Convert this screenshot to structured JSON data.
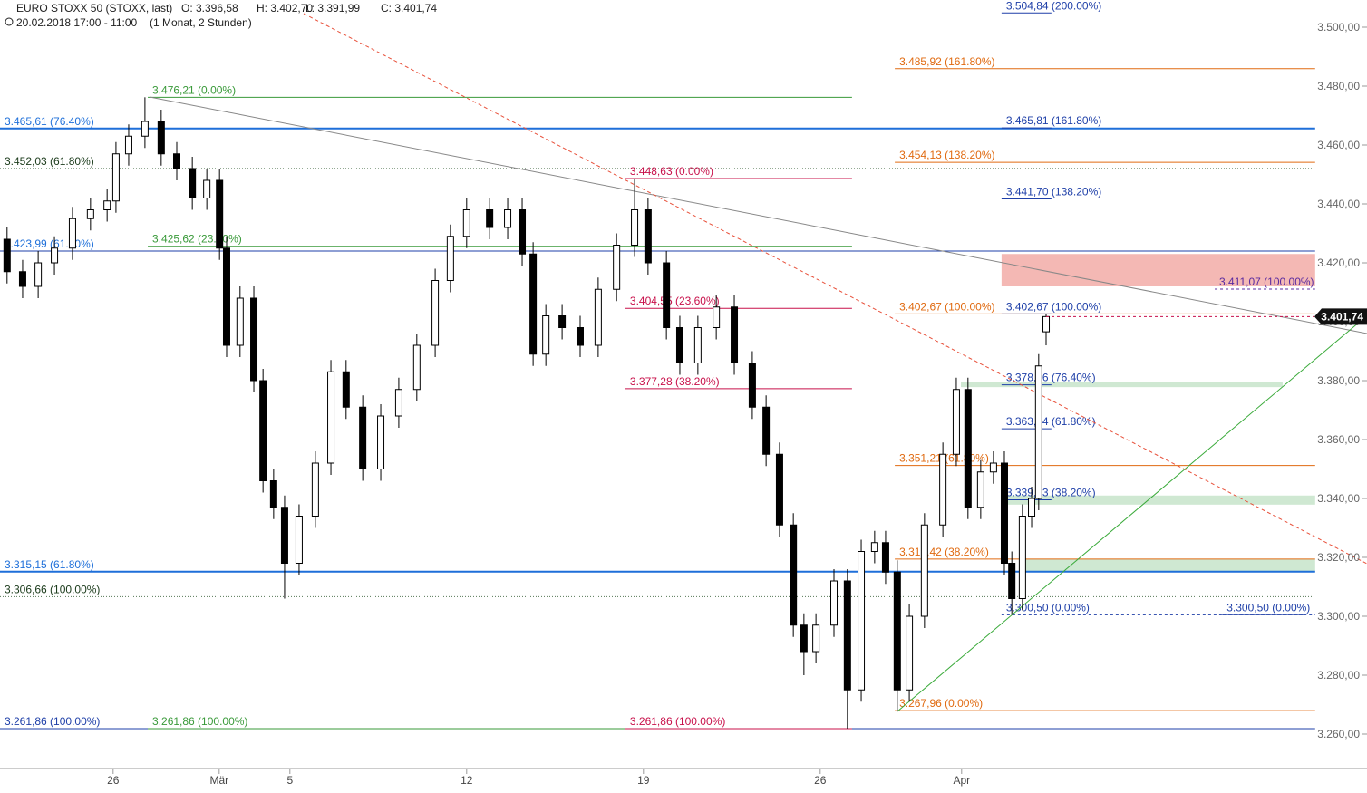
{
  "chart_data": {
    "type": "candlestick",
    "title": "EURO STOXX 50 (STOXX, last)",
    "ohlc_labels": [
      "O: 3.396,58",
      "H: 3.402,70",
      "L: 3.391,99",
      "C: 3.401,74"
    ],
    "subtitle": "20.02.2018 17:00 - 11:00",
    "period": "(1 Monat, 2 Stunden)",
    "xlim": [
      -3.2,
      34
    ],
    "ylim": [
      3248.31,
      3509.23
    ],
    "xticks": [
      {
        "value": 0,
        "label": "26"
      },
      {
        "value": 3,
        "label": "Mär"
      },
      {
        "value": 5,
        "label": "5"
      },
      {
        "value": 10,
        "label": "12"
      },
      {
        "value": 15,
        "label": "19"
      },
      {
        "value": 20,
        "label": "26"
      },
      {
        "value": 24,
        "label": "Apr"
      }
    ],
    "yticks": [
      {
        "value": 3500,
        "label": "3.500,00"
      },
      {
        "value": 3480,
        "label": "3.480,00"
      },
      {
        "value": 3460,
        "label": "3.460,00"
      },
      {
        "value": 3440,
        "label": "3.440,00"
      },
      {
        "value": 3420,
        "label": "3.420,00"
      },
      {
        "value": 3400,
        "label": "3.400,00"
      },
      {
        "value": 3380,
        "label": "3.380,00"
      },
      {
        "value": 3360,
        "label": "3.360,00"
      },
      {
        "value": 3340,
        "label": "3.340,00"
      },
      {
        "value": 3320,
        "label": "3.320,00"
      },
      {
        "value": 3300,
        "label": "3.300,00"
      },
      {
        "value": 3280,
        "label": "3.280,00"
      },
      {
        "value": 3260,
        "label": "3.260,00"
      }
    ],
    "up_color": "#ffffff",
    "down_color": "#000000",
    "x": [
      -3.0,
      -2.56,
      -2.12,
      -1.66,
      -1.15,
      -0.64,
      -0.17,
      0.08,
      0.44,
      0.9,
      1.36,
      1.8,
      2.24,
      2.65,
      3.01,
      3.21,
      3.59,
      3.98,
      4.24,
      4.54,
      4.85,
      5.26,
      5.72,
      6.16,
      6.59,
      7.06,
      7.57,
      8.08,
      8.59,
      9.11,
      9.54,
      10.0,
      10.65,
      11.16,
      11.57,
      11.88,
      12.24,
      12.7,
      13.21,
      13.72,
      14.24,
      14.75,
      15.13,
      15.65,
      16.03,
      16.54,
      17.06,
      17.57,
      18.08,
      18.47,
      18.85,
      19.24,
      19.54,
      19.88,
      20.39,
      20.77,
      21.16,
      21.54,
      21.85,
      22.18,
      22.52,
      22.95,
      23.47,
      23.85,
      24.18,
      24.54,
      24.9,
      25.21,
      25.42,
      25.72,
      25.98,
      26.18,
      26.39
    ],
    "open": [
      3428,
      3417,
      3412,
      3420,
      3425,
      3435,
      3438,
      3441,
      3457,
      3463,
      3468,
      3457,
      3452,
      3442,
      3448,
      3425,
      3392,
      3408,
      3380,
      3346,
      3337,
      3318,
      3334,
      3352,
      3383,
      3371,
      3350,
      3368,
      3377,
      3392,
      3414,
      3429,
      3438,
      3432,
      3438,
      3423,
      3389,
      3402,
      3398,
      3392,
      3411,
      3426,
      3438,
      3420,
      3398,
      3386,
      3398,
      3405,
      3386,
      3371,
      3355,
      3331,
      3297,
      3288,
      3297,
      3312,
      3275,
      3322,
      3325,
      3315,
      3275,
      3300,
      3331,
      3355,
      3377,
      3337,
      3349,
      3352,
      3318,
      3306,
      3334,
      3340,
      3396.58
    ],
    "high": [
      3432,
      3421,
      3424,
      3429,
      3439,
      3442,
      3445,
      3461,
      3467,
      3476.21,
      3472,
      3461,
      3456,
      3452,
      3452,
      3429,
      3412,
      3412,
      3384,
      3350,
      3341,
      3338,
      3356,
      3387,
      3387,
      3375,
      3372,
      3381,
      3396,
      3418,
      3433,
      3442,
      3442,
      3442,
      3442,
      3427,
      3406,
      3406,
      3402,
      3415,
      3430,
      3448.63,
      3442,
      3424,
      3402,
      3402,
      3409,
      3409,
      3390,
      3375,
      3359,
      3335,
      3301,
      3301,
      3316,
      3316,
      3326,
      3329,
      3329,
      3319,
      3304,
      3335,
      3359,
      3381,
      3381,
      3353,
      3356,
      3356,
      3322,
      3338,
      3344,
      3389,
      3402.7
    ],
    "low": [
      3413,
      3408,
      3408,
      3416,
      3421,
      3431,
      3434,
      3437,
      3453,
      3459,
      3453,
      3448,
      3438,
      3438,
      3421,
      3388,
      3388,
      3376,
      3342,
      3333,
      3306,
      3314,
      3330,
      3348,
      3367,
      3346,
      3346,
      3364,
      3373,
      3388,
      3410,
      3425,
      3428,
      3428,
      3419,
      3385,
      3385,
      3394,
      3388,
      3388,
      3407,
      3422,
      3416,
      3394,
      3382,
      3382,
      3394,
      3382,
      3367,
      3351,
      3327,
      3293,
      3280,
      3284,
      3293,
      3261.86,
      3271,
      3318,
      3311,
      3267.96,
      3271,
      3296,
      3327,
      3351,
      3333,
      3333,
      3345,
      3314,
      3300.5,
      3302,
      3330,
      3336,
      3391.99
    ],
    "close": [
      3417,
      3412,
      3420,
      3425,
      3435,
      3438,
      3441,
      3457,
      3463,
      3468,
      3457,
      3452,
      3442,
      3448,
      3425,
      3392,
      3408,
      3380,
      3346,
      3337,
      3318,
      3334,
      3352,
      3383,
      3371,
      3350,
      3368,
      3377,
      3392,
      3414,
      3429,
      3438,
      3432,
      3438,
      3423,
      3389,
      3402,
      3398,
      3392,
      3411,
      3426,
      3438,
      3420,
      3398,
      3386,
      3398,
      3405,
      3386,
      3371,
      3355,
      3331,
      3297,
      3288,
      3297,
      3312,
      3275,
      3322,
      3325,
      3315,
      3275,
      3300,
      3331,
      3355,
      3377,
      3337,
      3349,
      3352,
      3318,
      3306,
      3334,
      3340,
      3385,
      3401.74
    ],
    "zones": [
      {
        "low": 3412,
        "high": 3423,
        "x": [
          25.13,
          34
        ],
        "color": "#f4b8b4"
      },
      {
        "low": 3377.8,
        "high": 3379.6,
        "x": [
          23.98,
          33.08
        ],
        "color": "#cfe8d2"
      },
      {
        "low": 3337.9,
        "high": 3341,
        "x": [
          25.13,
          34
        ],
        "color": "#cfe8d2"
      },
      {
        "low": 3315.15,
        "high": 3319.42,
        "x": [
          25.72,
          34
        ],
        "color": "#cfe8d2"
      }
    ],
    "levels": [
      {
        "value": 3465.61,
        "label": "3.465,61 (76.40%)",
        "color": "#1e6fd9",
        "text_color": "#1e6fd9",
        "width": 2,
        "dash": "",
        "x": [
          -3.2,
          34
        ]
      },
      {
        "value": 3452.03,
        "label": "3.452,03 (61.80%)",
        "color": "#557755",
        "text_color": "#1a3a1a",
        "width": 1,
        "dash": "1,2",
        "x": [
          -3.2,
          34
        ]
      },
      {
        "value": 3423.99,
        "label": "3.423,99 (61.80%)",
        "color": "#1e3fa8",
        "text_color": "#1e6fd9",
        "width": 1,
        "dash": "",
        "x": [
          -3.2,
          34
        ]
      },
      {
        "value": 3315.15,
        "label": "3.315,15 (61.80%)",
        "color": "#1e6fd9",
        "text_color": "#1e6fd9",
        "width": 2,
        "dash": "",
        "x": [
          -3.2,
          34
        ]
      },
      {
        "value": 3306.66,
        "label": "3.306,66 (100.00%)",
        "color": "#557755",
        "text_color": "#1a3a1a",
        "width": 1,
        "dash": "1,2",
        "x": [
          -3.2,
          34
        ]
      },
      {
        "value": 3261.86,
        "label": "3.261,86 (100.00%)",
        "color": "#1e3fa8",
        "text_color": "#1e3fa8",
        "width": 1,
        "dash": "",
        "x": [
          -3.2,
          34
        ]
      },
      {
        "value": 3476.21,
        "label": "3.476,21 (0.00%)",
        "color": "#3a9a3a",
        "text_color": "#3a9a3a",
        "width": 1,
        "dash": "",
        "x": [
          0.98,
          20.9
        ]
      },
      {
        "value": 3425.62,
        "label": "3.425,62 (23.60%)",
        "color": "#3a9a3a",
        "text_color": "#3a9a3a",
        "width": 1,
        "dash": "",
        "x": [
          0.98,
          20.9
        ]
      },
      {
        "value": 3261.86,
        "label": "3.261,86 (100.00%)",
        "color": "#3a9a3a",
        "text_color": "#3a9a3a",
        "width": 1,
        "dash": "",
        "x": [
          0.98,
          20.9
        ]
      },
      {
        "value": 3448.63,
        "label": "3.448,63 (0.00%)",
        "color": "#c8104a",
        "text_color": "#c8104a",
        "width": 1,
        "dash": "",
        "x": [
          14.49,
          20.9
        ]
      },
      {
        "value": 3404.55,
        "label": "3.404,55 (23.60%)",
        "color": "#c8104a",
        "text_color": "#c8104a",
        "width": 1,
        "dash": "",
        "x": [
          14.49,
          20.9
        ]
      },
      {
        "value": 3377.28,
        "label": "3.377,28 (38.20%)",
        "color": "#c8104a",
        "text_color": "#c8104a",
        "width": 1,
        "dash": "",
        "x": [
          14.49,
          20.9
        ]
      },
      {
        "value": 3261.86,
        "label": "3.261,86 (100.00%)",
        "color": "#c8104a",
        "text_color": "#c8104a",
        "width": 1,
        "dash": "",
        "x": [
          14.49,
          20.9
        ]
      },
      {
        "value": 3485.92,
        "label": "3.485,92 (161.80%)",
        "color": "#e06a10",
        "text_color": "#e06a10",
        "width": 1,
        "dash": "",
        "x": [
          22.11,
          34
        ]
      },
      {
        "value": 3454.13,
        "label": "3.454,13 (138.20%)",
        "color": "#e06a10",
        "text_color": "#e06a10",
        "width": 1,
        "dash": "",
        "x": [
          22.11,
          34
        ]
      },
      {
        "value": 3402.67,
        "label": "3.402,67 (100.00%)",
        "color": "#e06a10",
        "text_color": "#e06a10",
        "width": 1,
        "dash": "",
        "x": [
          22.11,
          34
        ]
      },
      {
        "value": 3351.21,
        "label": "3.351,21 (61.80%)",
        "color": "#e06a10",
        "text_color": "#e06a10",
        "width": 1,
        "dash": "",
        "x": [
          22.11,
          34
        ]
      },
      {
        "value": 3319.42,
        "label": "3.319,42 (38.20%)",
        "color": "#e06a10",
        "text_color": "#e06a10",
        "width": 1,
        "dash": "",
        "x": [
          22.11,
          34
        ]
      },
      {
        "value": 3267.96,
        "label": "3.267,96 (0.00%)",
        "color": "#e06a10",
        "text_color": "#e06a10",
        "width": 1,
        "dash": "",
        "x": [
          22.11,
          34
        ]
      },
      {
        "value": 3504.84,
        "label": "3.504,84 (200.00%)",
        "color": "#1e3fa8",
        "text_color": "#1e3fa8",
        "width": 1,
        "dash": "",
        "x": [
          25.13,
          26.54
        ]
      },
      {
        "value": 3465.81,
        "label": "3.465,81 (161.80%)",
        "color": "#1e3fa8",
        "text_color": "#1e3fa8",
        "width": 1,
        "dash": "",
        "x": [
          25.13,
          26.54
        ]
      },
      {
        "value": 3441.7,
        "label": "3.441,70 (138.20%)",
        "color": "#1e3fa8",
        "text_color": "#1e3fa8",
        "width": 1,
        "dash": "",
        "x": [
          25.13,
          26.54
        ]
      },
      {
        "value": 3402.67,
        "label": "3.402,67 (100.00%)",
        "color": "#1e3fa8",
        "text_color": "#1e3fa8",
        "width": 1,
        "dash": "",
        "x": [
          25.13,
          26.54
        ]
      },
      {
        "value": 3378.56,
        "label": "3.378,56 (76.40%)",
        "color": "#1e3fa8",
        "text_color": "#1e3fa8",
        "width": 1,
        "dash": "",
        "x": [
          25.13,
          26.54
        ]
      },
      {
        "value": 3363.64,
        "label": "3.363,64 (61.80%)",
        "color": "#1e3fa8",
        "text_color": "#1e3fa8",
        "width": 1,
        "dash": "",
        "x": [
          25.13,
          26.54
        ]
      },
      {
        "value": 3339.53,
        "label": "3.339,53 (38.20%)",
        "color": "#1e3fa8",
        "text_color": "#1e3fa8",
        "width": 1,
        "dash": "",
        "x": [
          25.13,
          26.54
        ]
      },
      {
        "value": 3300.5,
        "label": "3.300,50 (0.00%)",
        "color": "#1e3fa8",
        "text_color": "#1e3fa8",
        "width": 1,
        "dash": "3,3",
        "x": [
          25.13,
          33.72
        ]
      },
      {
        "value": 3411.07,
        "label": "3.411,07 (100.00%)",
        "color": "#5a2aa0",
        "text_color": "#5a2aa0",
        "width": 1,
        "dash": "3,3",
        "x": [
          31.16,
          34
        ]
      },
      {
        "value": 3300.5,
        "label": "3.300,50 (0.00%)",
        "color": "#1e3fa8",
        "text_color": "#1e3fa8",
        "width": 1,
        "dash": "3,3",
        "x": [
          31.37,
          34
        ]
      }
    ],
    "last_price": {
      "value": 3401.74,
      "label": "3.401,74"
    }
  }
}
